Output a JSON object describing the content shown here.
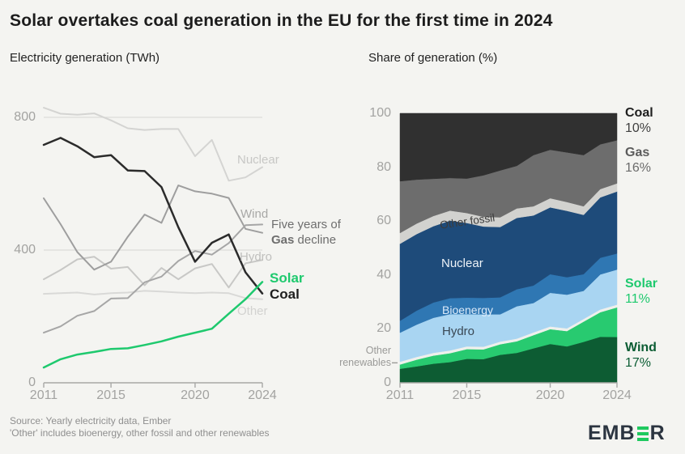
{
  "title": "Solar overtakes coal generation in the EU for the first time in 2024",
  "annotation": {
    "line1": "Five years of",
    "bold": "Gas",
    "line2": "decline"
  },
  "other_renewables_label": {
    "line1": "Other",
    "line2": "renewables"
  },
  "footer": {
    "line1": "Source: Yearly electricity data, Ember",
    "line2": "'Other' includes bioenergy, other fossil and other renewables"
  },
  "logo": {
    "prefix": "EMB",
    "suffix": "R",
    "accent_color": "#1fc95f",
    "text_color": "#2b3440"
  },
  "chart_data": [
    {
      "type": "line",
      "title": "Electricity generation (TWh)",
      "x": [
        2011,
        2012,
        2013,
        2014,
        2015,
        2016,
        2017,
        2018,
        2019,
        2020,
        2021,
        2022,
        2023,
        2024
      ],
      "x_ticks": [
        2011,
        2015,
        2020,
        2024
      ],
      "y_ticks": [
        0,
        400,
        800
      ],
      "ylim": [
        0,
        880
      ],
      "ylabel": "TWh",
      "grid": "horizontal",
      "series": [
        {
          "name": "Nuclear",
          "color": "#d4d4d2",
          "width": 2,
          "values": [
            829,
            811,
            808,
            812,
            791,
            767,
            762,
            765,
            765,
            683,
            732,
            609,
            619,
            650
          ]
        },
        {
          "name": "Other",
          "color": "#d9d9d7",
          "width": 2,
          "values": [
            268,
            270,
            272,
            266,
            270,
            272,
            277,
            275,
            272,
            270,
            272,
            270,
            255,
            252
          ]
        },
        {
          "name": "Hydro",
          "color": "#c8c8c6",
          "width": 2,
          "values": [
            312,
            340,
            372,
            380,
            344,
            349,
            294,
            346,
            312,
            345,
            358,
            287,
            360,
            370
          ]
        },
        {
          "name": "Gas",
          "color": "#9e9e9e",
          "width": 2,
          "values": [
            556,
            478,
            394,
            341,
            365,
            440,
            507,
            482,
            595,
            577,
            570,
            557,
            464,
            452
          ]
        },
        {
          "name": "Wind",
          "color": "#a6a6a6",
          "width": 2,
          "values": [
            151,
            170,
            202,
            216,
            254,
            255,
            303,
            320,
            367,
            397,
            386,
            421,
            475,
            477
          ]
        },
        {
          "name": "Coal",
          "color": "#2b2b2b",
          "width": 2.5,
          "values": [
            717,
            738,
            713,
            680,
            686,
            640,
            638,
            590,
            469,
            365,
            422,
            447,
            333,
            269
          ]
        },
        {
          "name": "Solar",
          "color": "#1ec96e",
          "width": 2.5,
          "values": [
            46,
            71,
            85,
            93,
            102,
            104,
            114,
            125,
            139,
            151,
            163,
            208,
            252,
            304
          ]
        }
      ]
    },
    {
      "type": "area",
      "title": "Share of generation (%)",
      "x": [
        2011,
        2012,
        2013,
        2014,
        2015,
        2016,
        2017,
        2018,
        2019,
        2020,
        2021,
        2022,
        2023,
        2024
      ],
      "x_ticks": [
        2011,
        2015,
        2020,
        2024
      ],
      "y_ticks": [
        0,
        20,
        40,
        60,
        80,
        100
      ],
      "ylim": [
        0,
        100
      ],
      "ylabel": "%",
      "stack_order": "bottom_to_top",
      "series": [
        {
          "name": "Wind",
          "color": "#0d5c33",
          "values": [
            5.2,
            6.1,
            7.1,
            7.7,
            8.9,
            8.8,
            10.4,
            11.1,
            12.8,
            14.4,
            13.5,
            15.2,
            17.1,
            17.0
          ]
        },
        {
          "name": "Solar",
          "color": "#28ca70",
          "values": [
            1.6,
            2.5,
            3.0,
            3.3,
            3.6,
            3.6,
            3.9,
            4.3,
            4.9,
            5.5,
            5.7,
            7.5,
            9.1,
            11.0
          ]
        },
        {
          "name": "Other renewables",
          "color": "#eef0ec",
          "values": [
            1,
            1,
            1,
            1,
            1,
            1,
            1,
            1,
            1,
            1,
            1,
            1,
            1,
            1
          ]
        },
        {
          "name": "Hydro",
          "color": "#a9d5f2",
          "values": [
            10.8,
            12.0,
            13.0,
            13.5,
            12.0,
            12.0,
            10.1,
            12.0,
            10.9,
            12.5,
            12.5,
            10.4,
            13.0,
            13.0
          ]
        },
        {
          "name": "Bioenergy",
          "color": "#2f77b3",
          "values": [
            4.4,
            5.2,
            5.7,
            5.9,
            6.1,
            6.1,
            6.3,
            6.3,
            6.5,
            6.9,
            6.5,
            6.2,
            6.2,
            6.0
          ]
        },
        {
          "name": "Nuclear",
          "color": "#1e4b7a",
          "values": [
            28.6,
            28.4,
            28.3,
            28.8,
            27.7,
            26.5,
            26.1,
            26.5,
            26.0,
            24.8,
            24.6,
            22.0,
            22.4,
            23.0
          ]
        },
        {
          "name": "Other fossil",
          "color": "#d2d2cf",
          "values": [
            4.0,
            3.9,
            3.8,
            3.7,
            3.7,
            3.6,
            3.6,
            3.5,
            3.4,
            3.4,
            3.3,
            3.2,
            3.1,
            3.0
          ]
        },
        {
          "name": "Gas",
          "color": "#6d6d6d",
          "values": [
            19.2,
            16.3,
            13.8,
            12.1,
            12.8,
            15.4,
            17.4,
            15.8,
            19.0,
            18.0,
            18.4,
            19.0,
            16.6,
            16.0
          ]
        },
        {
          "name": "Coal",
          "color": "#303030",
          "values": [
            25.2,
            24.6,
            24.3,
            24.0,
            24.2,
            23.0,
            21.2,
            19.5,
            15.5,
            13.5,
            14.5,
            15.5,
            11.5,
            10.0
          ]
        }
      ],
      "end_labels": [
        {
          "name": "Coal",
          "pct": "10%"
        },
        {
          "name": "Gas",
          "pct": "16%"
        },
        {
          "name": "Solar",
          "pct": "11%"
        },
        {
          "name": "Wind",
          "pct": "17%"
        }
      ]
    }
  ]
}
